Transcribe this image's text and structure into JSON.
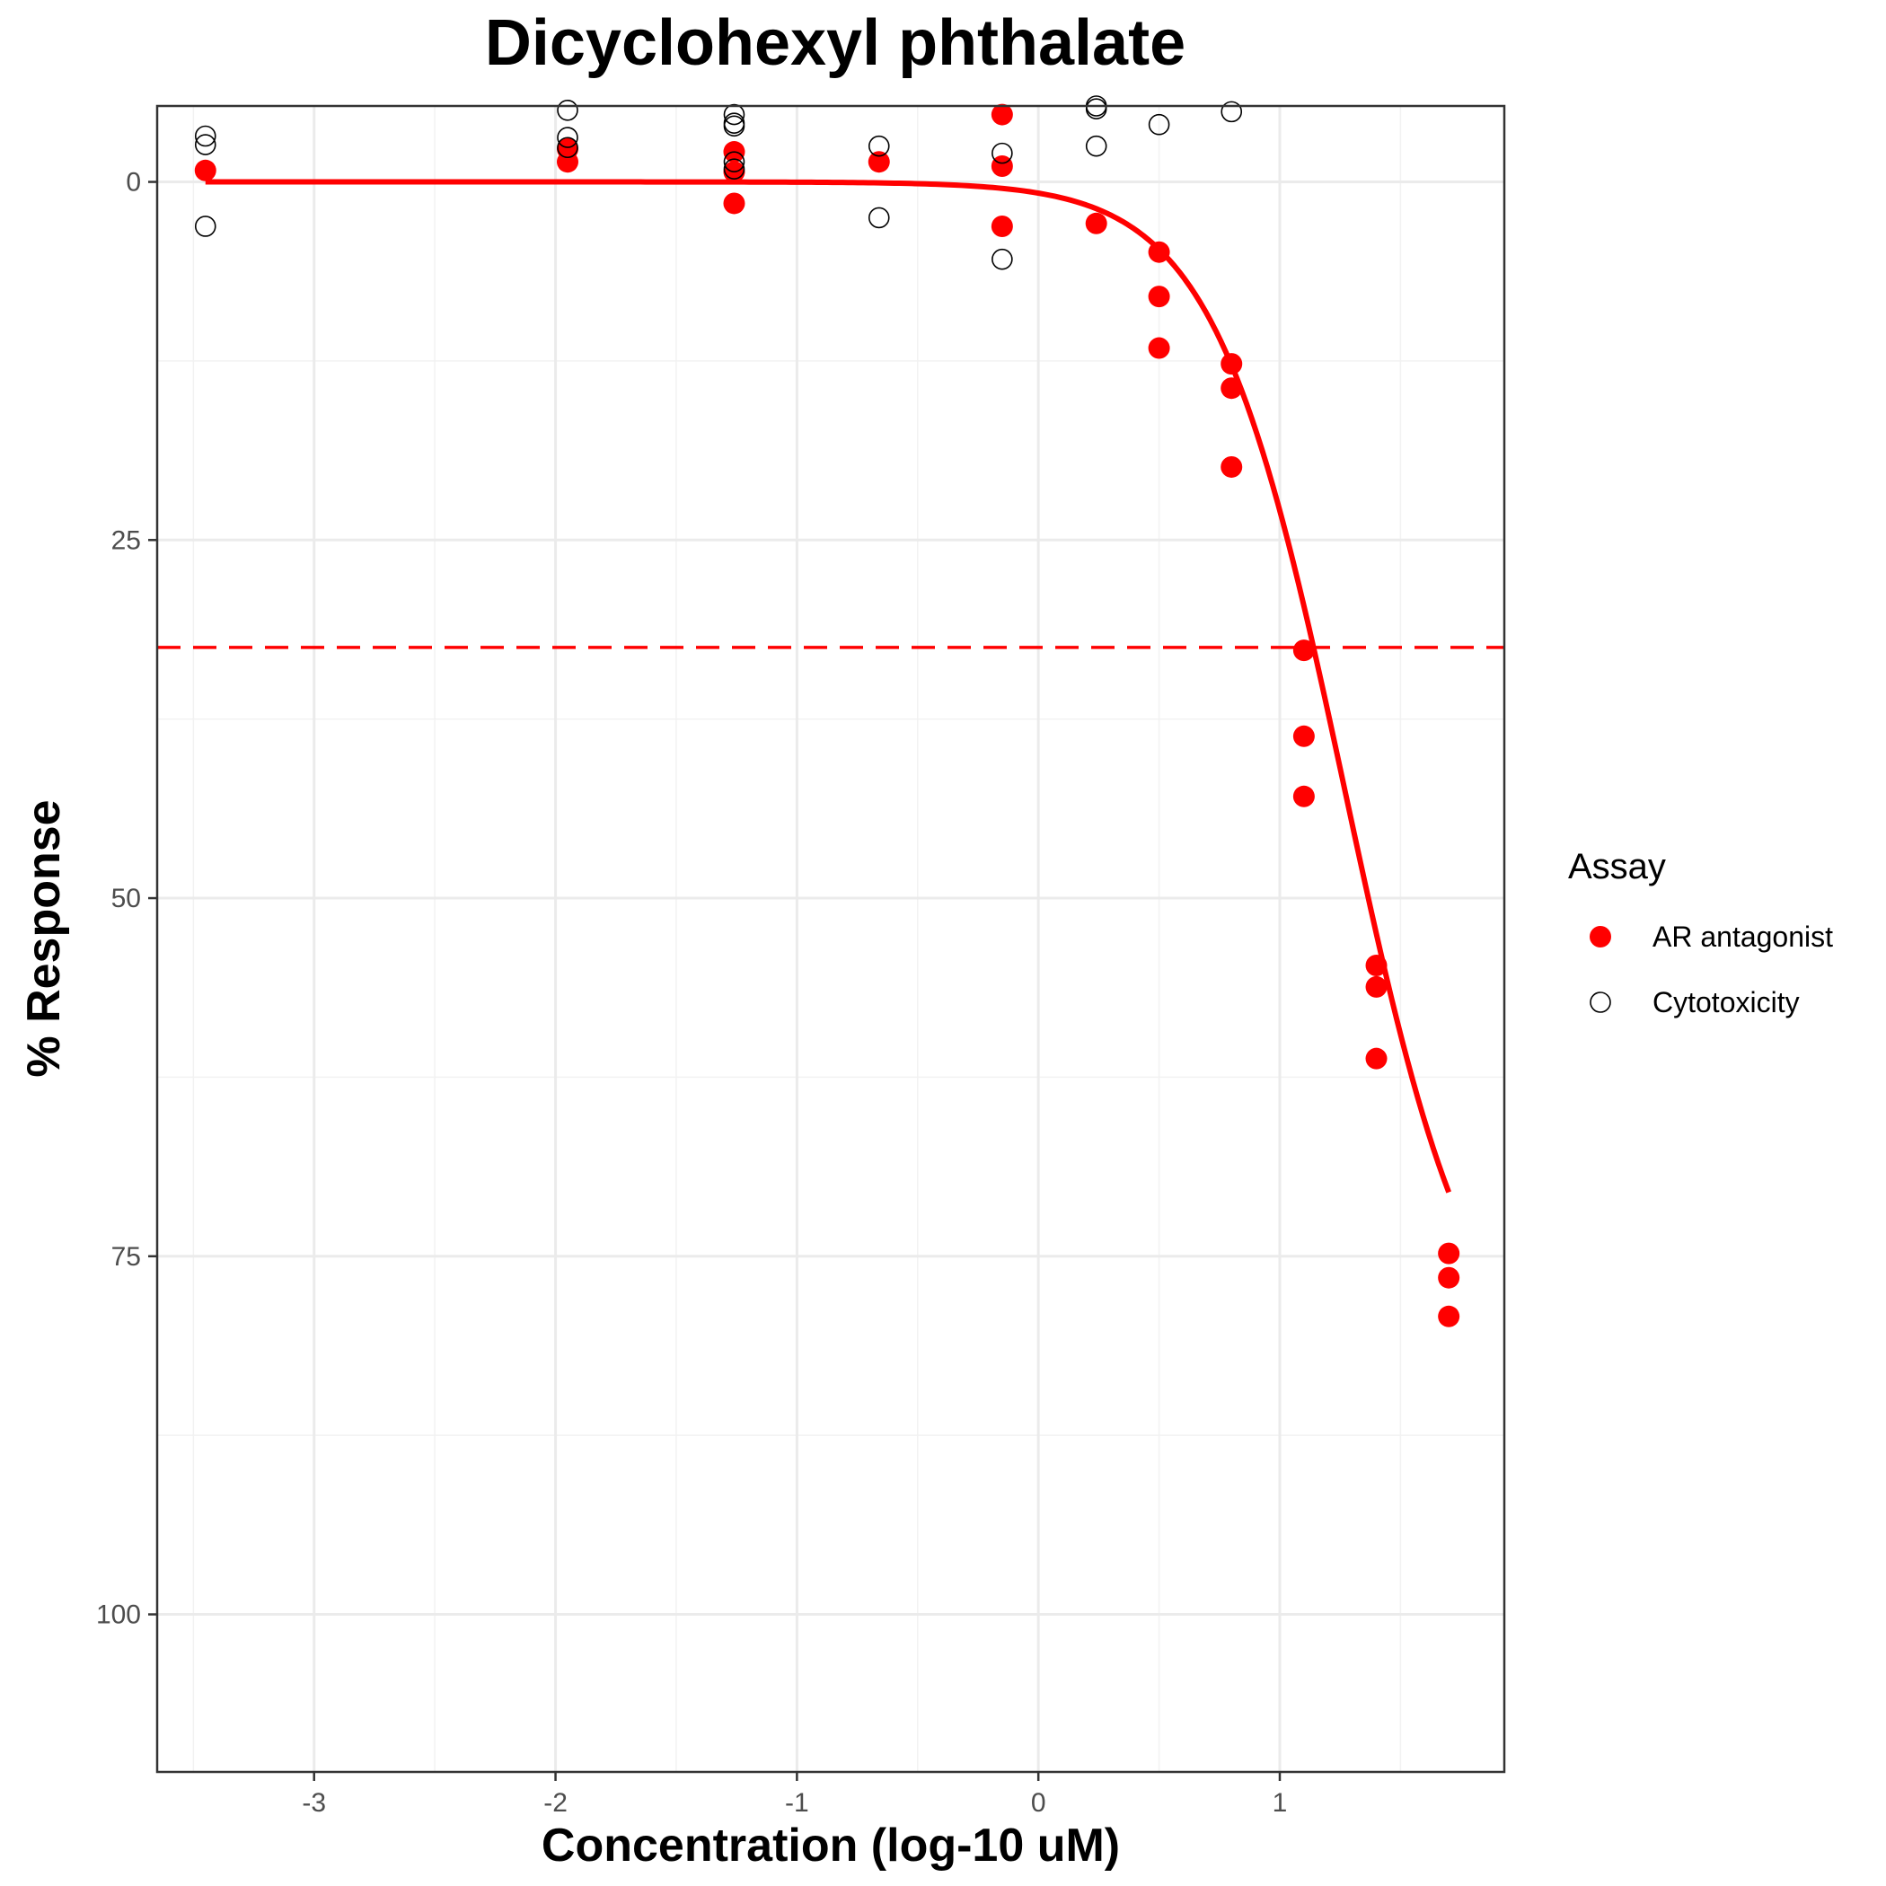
{
  "chart_data": {
    "type": "scatter",
    "title": "Dicyclohexyl phthalate",
    "xlabel": "Concentration (log-10 uM)",
    "ylabel": "% Response",
    "xlim": [
      -3.65,
      1.93
    ],
    "ylim": [
      -5.3,
      111
    ],
    "y_reversed": true,
    "x_ticks": [
      -3,
      -2,
      -1,
      0,
      1
    ],
    "x_tick_labels": [
      "-3",
      "-2",
      "-1",
      "0",
      "1"
    ],
    "y_ticks": [
      0,
      25,
      50,
      75,
      100
    ],
    "y_tick_labels": [
      "0",
      "25",
      "50",
      "75",
      "100"
    ],
    "grid": true,
    "legend": {
      "title": "Assay",
      "position": "right",
      "entries": [
        "AR antagonist",
        "Cytotoxicity"
      ]
    },
    "series": [
      {
        "name": "AR antagonist",
        "marker": "filled-circle",
        "color": "#ff0000",
        "points": [
          [
            -3.45,
            -0.8
          ],
          [
            -1.95,
            -1.4
          ],
          [
            -1.95,
            -2.3
          ],
          [
            -1.26,
            -2.1
          ],
          [
            -1.26,
            -0.7
          ],
          [
            -1.26,
            1.5
          ],
          [
            -0.66,
            -1.4
          ],
          [
            -0.15,
            -4.7
          ],
          [
            -0.15,
            -1.1
          ],
          [
            -0.15,
            3.1
          ],
          [
            0.24,
            2.9
          ],
          [
            0.5,
            4.9
          ],
          [
            0.5,
            8.0
          ],
          [
            0.5,
            11.6
          ],
          [
            0.8,
            12.7
          ],
          [
            0.8,
            14.4
          ],
          [
            0.8,
            19.9
          ],
          [
            1.1,
            32.7
          ],
          [
            1.1,
            38.7
          ],
          [
            1.1,
            42.9
          ],
          [
            1.4,
            54.7
          ],
          [
            1.4,
            56.2
          ],
          [
            1.4,
            61.2
          ],
          [
            1.7,
            74.8
          ],
          [
            1.7,
            76.5
          ],
          [
            1.7,
            79.2
          ]
        ]
      },
      {
        "name": "Cytotoxicity",
        "marker": "open-circle",
        "color": "#000000",
        "points": [
          [
            -3.45,
            -3.2
          ],
          [
            -3.45,
            -2.6
          ],
          [
            -3.45,
            3.1
          ],
          [
            -1.95,
            -5.0
          ],
          [
            -1.95,
            -3.1
          ],
          [
            -1.95,
            -2.4
          ],
          [
            -1.26,
            -4.7
          ],
          [
            -1.26,
            -4.1
          ],
          [
            -1.26,
            -3.9
          ],
          [
            -1.26,
            -1.4
          ],
          [
            -1.26,
            -0.9
          ],
          [
            -0.66,
            -2.5
          ],
          [
            -0.66,
            2.5
          ],
          [
            -0.15,
            -2.0
          ],
          [
            -0.15,
            5.4
          ],
          [
            0.24,
            -5.3
          ],
          [
            0.24,
            -5.1
          ],
          [
            0.24,
            -2.5
          ],
          [
            0.5,
            -4.0
          ],
          [
            0.8,
            -4.9
          ]
        ]
      }
    ],
    "fit_curve": {
      "model": "hill",
      "color": "#ff0000",
      "top": 85,
      "ac50_log": 1.27,
      "hill_slope": 1.6,
      "x_range": [
        -3.45,
        1.7
      ]
    },
    "cutoff_line": {
      "y": 32.5,
      "style": "dashed",
      "color": "#ff0000"
    }
  }
}
